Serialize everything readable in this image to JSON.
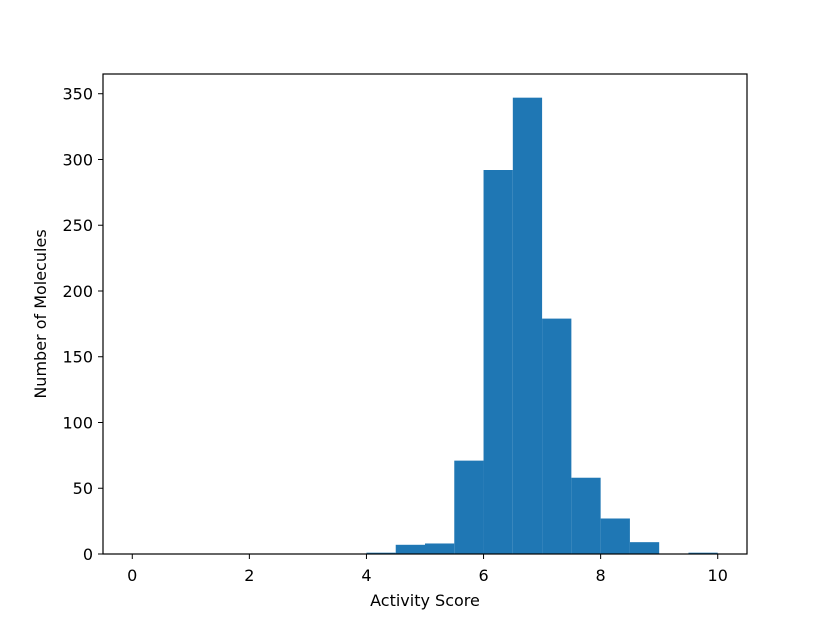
{
  "chart_data": {
    "type": "bar",
    "subtype": "histogram",
    "bin_edges": [
      0.0,
      0.5,
      1.0,
      1.5,
      2.0,
      2.5,
      3.0,
      3.5,
      4.0,
      4.5,
      5.0,
      5.5,
      6.0,
      6.5,
      7.0,
      7.5,
      8.0,
      8.5,
      9.0,
      9.5,
      10.0
    ],
    "values": [
      0,
      0,
      0,
      0,
      0,
      0,
      0,
      0,
      1,
      7,
      8,
      71,
      292,
      347,
      179,
      58,
      27,
      9,
      0,
      1
    ],
    "xlabel": "Activity Score",
    "ylabel": "Number of Molecules",
    "xlim": [
      -0.5,
      10.5
    ],
    "ylim": [
      0,
      365
    ],
    "xticks": [
      0,
      2,
      4,
      6,
      8,
      10
    ],
    "yticks": [
      0,
      50,
      100,
      150,
      200,
      250,
      300,
      350
    ],
    "bar_color": "#1f77b4",
    "grid": false
  }
}
